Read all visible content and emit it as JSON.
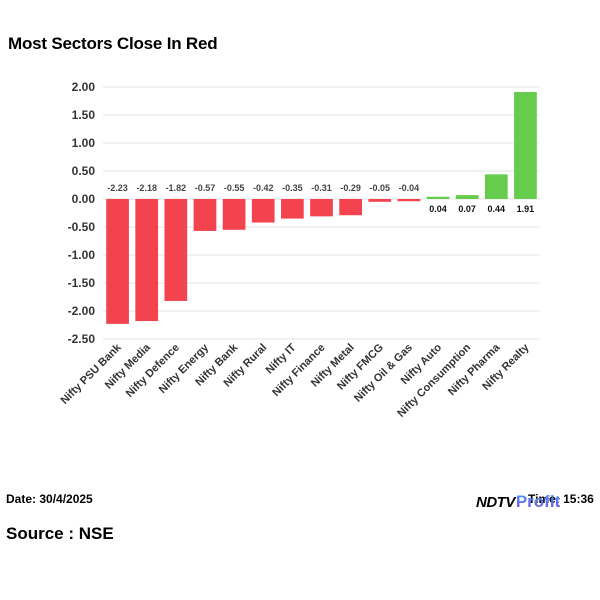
{
  "page": {
    "title": "Most Sectors Close In Red",
    "date_label": "Date: 30/4/2025",
    "time_label": "Time: 15:36",
    "source_label": "Source : NSE",
    "logo_primary": "NDTV",
    "logo_secondary": "Profit"
  },
  "colors": {
    "negative": "#f2434f",
    "positive": "#66cc4d",
    "grid": "#e6e6e6",
    "tick_text": "#333333",
    "label_text": "#444444"
  },
  "chart_data": {
    "type": "bar",
    "title": "Most Sectors Close In Red",
    "xlabel": "",
    "ylabel": "",
    "ylim": [
      -2.5,
      2.0
    ],
    "yticks": [
      "2.00",
      "1.50",
      "1.00",
      "0.50",
      "0.00",
      "-0.50",
      "-1.00",
      "-1.50",
      "-2.00",
      "-2.50"
    ],
    "ytick_values": [
      2.0,
      1.5,
      1.0,
      0.5,
      0.0,
      -0.5,
      -1.0,
      -1.5,
      -2.0,
      -2.5
    ],
    "grid": true,
    "categories": [
      "Nifty PSU Bank",
      "Nifty Media",
      "Nifty Defence",
      "Nifty Energy",
      "Nifty Bank",
      "Nifty Rural",
      "Nifty IT",
      "Nifty Finance",
      "Nifty Metal",
      "Nifty FMCG",
      "Nifty Oil & Gas",
      "Nifty Auto",
      "Nifty Consumption",
      "Nifty Pharma",
      "Nifty Realty"
    ],
    "values": [
      -2.23,
      -2.18,
      -1.82,
      -0.57,
      -0.55,
      -0.42,
      -0.35,
      -0.31,
      -0.29,
      -0.05,
      -0.04,
      0.04,
      0.07,
      0.44,
      1.91
    ],
    "data_labels": [
      "-2.23",
      "-2.18",
      "-1.82",
      "-0.57",
      "-0.55",
      "-0.42",
      "-0.35",
      "-0.31",
      "-0.29",
      "-0.05",
      "-0.04",
      "0.04",
      "0.07",
      "0.44",
      "1.91"
    ]
  }
}
